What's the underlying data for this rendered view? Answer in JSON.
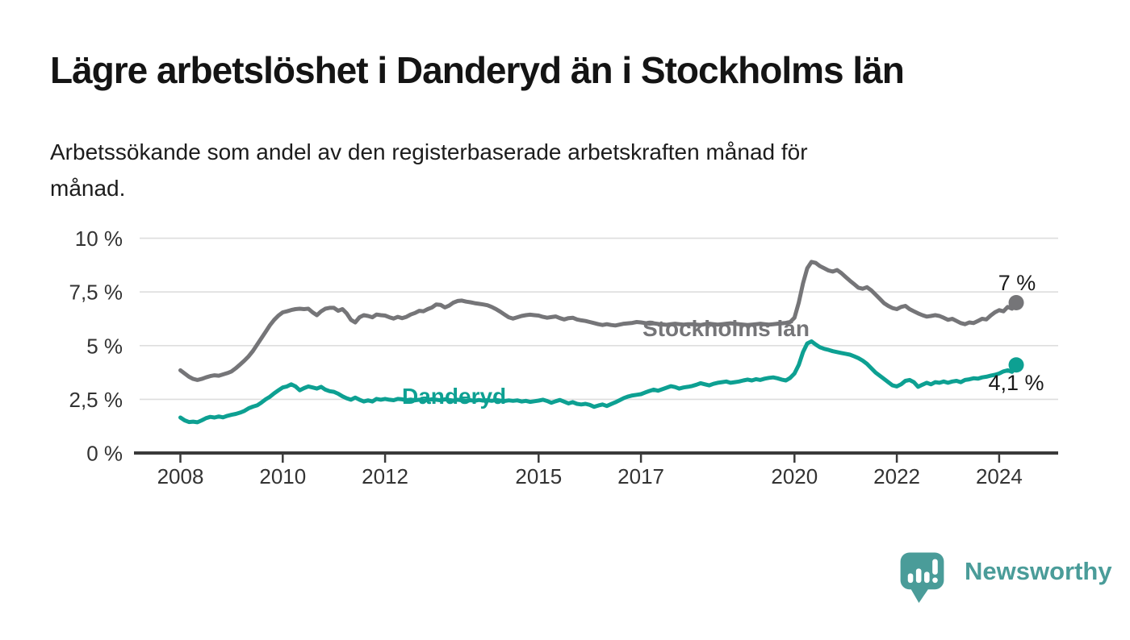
{
  "page": {
    "title": "Lägre arbetslöshet i Danderyd än i Stockholms län",
    "subtitle": "Arbetssökande som andel av den registerbaserade arbetskraften månad för\nmånad."
  },
  "branding": {
    "logo_text": "Newsworthy",
    "logo_color": "#4a9c99",
    "logo_icon": "newsworthy-speech-bubble-bar-chart-icon"
  },
  "chart_data": {
    "type": "line",
    "title": "Lägre arbetslöshet i Danderyd än i Stockholms län",
    "subtitle": "Arbetssökande som andel av den registerbaserade arbetskraften månad för månad.",
    "x_unit": "month",
    "x_start_year": 2008,
    "points_per_year": 12,
    "xlim": [
      2007.2,
      2025.1
    ],
    "ylim": [
      0,
      10
    ],
    "grid": "horizontal",
    "colors": {
      "axis": "#3a3a3a",
      "grid": "#dedede",
      "tick_label": "#333333",
      "value_label": "#1a1a1a"
    },
    "y_ticks": [
      {
        "label": "0 %",
        "value": 0
      },
      {
        "label": "2,5 %",
        "value": 2.5
      },
      {
        "label": "5 %",
        "value": 5
      },
      {
        "label": "7,5 %",
        "value": 7.5
      },
      {
        "label": "10 %",
        "value": 10
      }
    ],
    "x_ticks": [
      {
        "label": "2008",
        "year": 2008
      },
      {
        "label": "2010",
        "year": 2010
      },
      {
        "label": "2012",
        "year": 2012
      },
      {
        "label": "2015",
        "year": 2015
      },
      {
        "label": "2017",
        "year": 2017
      },
      {
        "label": "2020",
        "year": 2020
      },
      {
        "label": "2022",
        "year": 2022
      },
      {
        "label": "2024",
        "year": 2024
      }
    ],
    "series": [
      {
        "name": "Stockholms län",
        "color": "#757578",
        "end_label": "7 %",
        "end_value": 7.0,
        "inline_label_pos": {
          "x": 796,
          "y": 417
        },
        "end_label_pos": {
          "x": 1260,
          "y": 360
        },
        "values": [
          3.85,
          3.7,
          3.55,
          3.45,
          3.4,
          3.45,
          3.52,
          3.58,
          3.62,
          3.6,
          3.66,
          3.72,
          3.8,
          3.95,
          4.12,
          4.3,
          4.5,
          4.75,
          5.05,
          5.35,
          5.65,
          5.95,
          6.2,
          6.4,
          6.55,
          6.6,
          6.66,
          6.7,
          6.72,
          6.7,
          6.72,
          6.55,
          6.42,
          6.6,
          6.72,
          6.76,
          6.76,
          6.62,
          6.7,
          6.5,
          6.2,
          6.08,
          6.32,
          6.42,
          6.38,
          6.32,
          6.45,
          6.42,
          6.4,
          6.32,
          6.26,
          6.34,
          6.28,
          6.34,
          6.45,
          6.52,
          6.62,
          6.6,
          6.7,
          6.78,
          6.92,
          6.9,
          6.78,
          6.86,
          7.0,
          7.08,
          7.1,
          7.05,
          7.02,
          6.98,
          6.95,
          6.92,
          6.88,
          6.8,
          6.7,
          6.58,
          6.45,
          6.32,
          6.26,
          6.32,
          6.38,
          6.42,
          6.44,
          6.42,
          6.4,
          6.34,
          6.3,
          6.33,
          6.36,
          6.28,
          6.22,
          6.28,
          6.3,
          6.22,
          6.18,
          6.15,
          6.1,
          6.05,
          6.0,
          5.96,
          6.0,
          5.96,
          5.94,
          5.98,
          6.02,
          6.04,
          6.06,
          6.1,
          6.08,
          6.05,
          6.02,
          6.04,
          6.01,
          5.99,
          5.97,
          6.0,
          6.02,
          6.0,
          5.98,
          6.0,
          6.0,
          5.98,
          5.96,
          6.0,
          6.02,
          6.0,
          5.98,
          6.0,
          6.02,
          6.04,
          6.02,
          6.0,
          5.98,
          5.96,
          5.98,
          6.0,
          6.02,
          6.0,
          5.98,
          6.0,
          6.02,
          6.04,
          6.06,
          6.1,
          6.3,
          7.0,
          7.9,
          8.6,
          8.9,
          8.85,
          8.7,
          8.6,
          8.5,
          8.45,
          8.52,
          8.38,
          8.2,
          8.02,
          7.86,
          7.7,
          7.65,
          7.72,
          7.58,
          7.38,
          7.18,
          6.98,
          6.85,
          6.75,
          6.7,
          6.8,
          6.85,
          6.7,
          6.6,
          6.5,
          6.42,
          6.35,
          6.38,
          6.42,
          6.38,
          6.3,
          6.2,
          6.25,
          6.15,
          6.05,
          6.0,
          6.08,
          6.05,
          6.15,
          6.25,
          6.22,
          6.4,
          6.55,
          6.65,
          6.6,
          6.8,
          6.72,
          7.0
        ]
      },
      {
        "name": "Danderyd",
        "color": "#0da092",
        "end_label": "4,1 %",
        "end_value": 4.1,
        "inline_label_pos": {
          "x": 498,
          "y": 501
        },
        "end_label_pos": {
          "x": 1259,
          "y": 484
        },
        "values": [
          1.65,
          1.52,
          1.44,
          1.46,
          1.43,
          1.52,
          1.62,
          1.68,
          1.65,
          1.7,
          1.66,
          1.73,
          1.78,
          1.82,
          1.88,
          1.96,
          2.08,
          2.16,
          2.22,
          2.35,
          2.5,
          2.62,
          2.78,
          2.92,
          3.05,
          3.1,
          3.2,
          3.1,
          2.92,
          3.02,
          3.1,
          3.05,
          3.0,
          3.08,
          2.95,
          2.88,
          2.85,
          2.76,
          2.64,
          2.55,
          2.48,
          2.58,
          2.48,
          2.4,
          2.45,
          2.4,
          2.52,
          2.48,
          2.52,
          2.48,
          2.46,
          2.52,
          2.5,
          2.46,
          2.49,
          2.45,
          2.48,
          2.44,
          2.47,
          2.5,
          2.48,
          2.45,
          2.5,
          2.47,
          2.44,
          2.48,
          2.45,
          2.42,
          2.46,
          2.43,
          2.47,
          2.44,
          2.46,
          2.43,
          2.47,
          2.44,
          2.42,
          2.45,
          2.43,
          2.45,
          2.4,
          2.43,
          2.38,
          2.41,
          2.44,
          2.48,
          2.42,
          2.34,
          2.41,
          2.47,
          2.39,
          2.31,
          2.37,
          2.29,
          2.26,
          2.29,
          2.24,
          2.15,
          2.21,
          2.26,
          2.19,
          2.28,
          2.36,
          2.46,
          2.56,
          2.63,
          2.68,
          2.71,
          2.74,
          2.82,
          2.89,
          2.95,
          2.9,
          2.97,
          3.04,
          3.11,
          3.07,
          3.0,
          3.05,
          3.08,
          3.12,
          3.18,
          3.25,
          3.2,
          3.15,
          3.22,
          3.27,
          3.3,
          3.33,
          3.27,
          3.3,
          3.33,
          3.38,
          3.42,
          3.38,
          3.44,
          3.4,
          3.46,
          3.5,
          3.52,
          3.48,
          3.42,
          3.38,
          3.5,
          3.7,
          4.1,
          4.7,
          5.1,
          5.2,
          5.05,
          4.92,
          4.85,
          4.8,
          4.74,
          4.7,
          4.66,
          4.62,
          4.58,
          4.5,
          4.42,
          4.3,
          4.15,
          3.95,
          3.75,
          3.6,
          3.45,
          3.3,
          3.15,
          3.1,
          3.2,
          3.36,
          3.4,
          3.3,
          3.08,
          3.18,
          3.27,
          3.2,
          3.3,
          3.27,
          3.33,
          3.27,
          3.33,
          3.36,
          3.3,
          3.4,
          3.43,
          3.48,
          3.46,
          3.52,
          3.55,
          3.6,
          3.64,
          3.7,
          3.8,
          3.85,
          3.78,
          4.1
        ]
      }
    ]
  }
}
